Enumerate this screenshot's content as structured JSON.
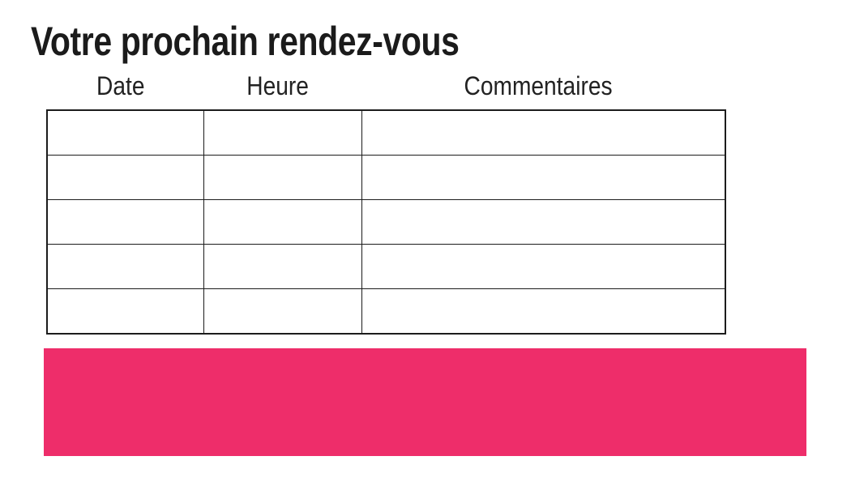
{
  "page": {
    "title": "Votre prochain rendez-vous",
    "background_color": "#ffffff",
    "text_color": "#1b1b1b"
  },
  "appointments_table": {
    "columns": [
      "Date",
      "Heure",
      "Commentaires"
    ],
    "row_count": 5,
    "rows": [
      [
        "",
        "",
        ""
      ],
      [
        "",
        "",
        ""
      ],
      [
        "",
        "",
        ""
      ],
      [
        "",
        "",
        ""
      ],
      [
        "",
        "",
        ""
      ]
    ],
    "border_color": "#1c1c1c"
  },
  "banner": {
    "text": "",
    "color": "#EE2D6A"
  }
}
